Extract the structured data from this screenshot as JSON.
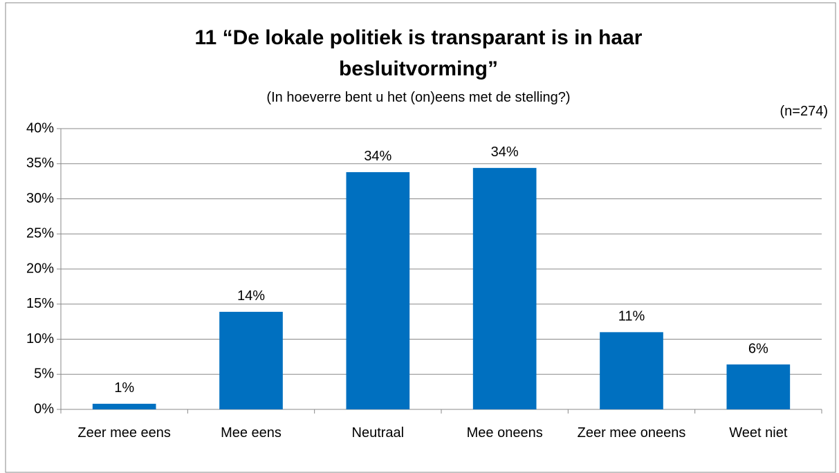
{
  "chart_data": {
    "type": "bar",
    "title": "11 “De lokale politiek is transparant is in haar besluitvorming”",
    "subtitle": "(In hoeverre bent u het (on)eens met de stelling?)",
    "annotation": "(n=274)",
    "categories": [
      "Zeer mee eens",
      "Mee eens",
      "Neutraal",
      "Mee oneens",
      "Zeer mee oneens",
      "Weet niet"
    ],
    "values": [
      0.8,
      13.9,
      33.8,
      34.4,
      11.0,
      6.4
    ],
    "value_labels": [
      "1%",
      "14%",
      "34%",
      "34%",
      "11%",
      "6%"
    ],
    "color": "#0070c0",
    "ylim": [
      0,
      40
    ],
    "yticks": [
      {
        "value": 0,
        "label": "0%"
      },
      {
        "value": 5,
        "label": "5%"
      },
      {
        "value": 10,
        "label": "10%"
      },
      {
        "value": 15,
        "label": "15%"
      },
      {
        "value": 20,
        "label": "20%"
      },
      {
        "value": 25,
        "label": "25%"
      },
      {
        "value": 30,
        "label": "30%"
      },
      {
        "value": 35,
        "label": "35%"
      },
      {
        "value": 40,
        "label": "40%"
      }
    ],
    "grid": true
  }
}
